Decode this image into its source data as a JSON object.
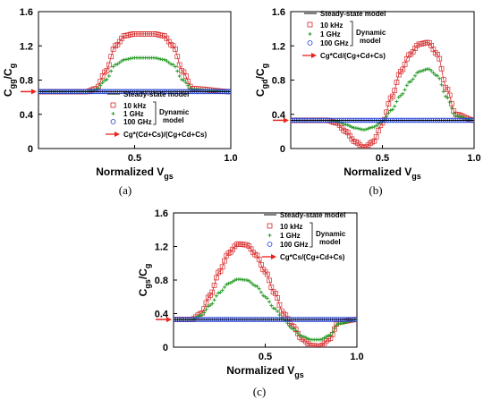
{
  "colors": {
    "ten_khz": "#d62728",
    "one_ghz": "#2a9d2a",
    "hundred_ghz": "#1f3fd6",
    "steady": "#000000",
    "arrow": "#e8231e"
  },
  "chart_data": [
    {
      "type": "line",
      "caption": "(a)",
      "ylabel_main": "C",
      "ylabel_sub1": "gg",
      "ylabel_mid": "/C",
      "ylabel_sub2": "g",
      "xlabel_main": "Normalized V",
      "xlabel_sub": "gs",
      "xlim": [
        0,
        1.0
      ],
      "ylim": [
        0,
        1.6
      ],
      "xticks": [
        "0.5",
        "1.0"
      ],
      "yticks": [
        "0",
        "0.4",
        "0.8",
        "1.2",
        "1.6"
      ],
      "legend": {
        "steady_label": "Steady-state model",
        "labels": [
          "10 kHz",
          "1 GHz",
          "100 GHz"
        ],
        "group_label_1": "Dynamic",
        "group_label_2": "model",
        "arrow_label": "Cg*(Cd+Cs)/(Cg+Cd+Cs)"
      },
      "series": [
        {
          "name": "10 kHz",
          "marker": "square",
          "x": [
            0,
            0.25,
            0.3,
            0.35,
            0.4,
            0.45,
            0.5,
            0.55,
            0.6,
            0.65,
            0.7,
            0.75,
            0.8,
            1.0
          ],
          "y": [
            0.665,
            0.665,
            0.7,
            0.9,
            1.2,
            1.32,
            1.34,
            1.34,
            1.34,
            1.32,
            1.2,
            0.9,
            0.7,
            0.665
          ]
        },
        {
          "name": "1 GHz",
          "marker": "plus",
          "x": [
            0,
            0.25,
            0.3,
            0.35,
            0.4,
            0.45,
            0.5,
            0.55,
            0.6,
            0.65,
            0.7,
            0.75,
            0.8,
            1.0
          ],
          "y": [
            0.665,
            0.665,
            0.69,
            0.8,
            0.98,
            1.04,
            1.06,
            1.06,
            1.06,
            1.04,
            0.98,
            0.8,
            0.69,
            0.665
          ]
        },
        {
          "name": "100 GHz",
          "marker": "circle",
          "x": [
            0,
            1.0
          ],
          "y": [
            0.665,
            0.665
          ]
        },
        {
          "name": "Steady-state model",
          "marker": "none",
          "x": [
            0,
            1.0
          ],
          "y": [
            0.665,
            0.665
          ]
        }
      ],
      "arrow_y": 0.665
    },
    {
      "type": "line",
      "caption": "(b)",
      "ylabel_main": "C",
      "ylabel_sub1": "gd",
      "ylabel_mid": "/C",
      "ylabel_sub2": "g",
      "xlabel_main": "Normalized V",
      "xlabel_sub": "gs",
      "xlim": [
        0,
        1.0
      ],
      "ylim": [
        0,
        1.6
      ],
      "xticks": [
        "0.5",
        "1.0"
      ],
      "yticks": [
        "0",
        "0.4",
        "0.8",
        "1.2",
        "1.6"
      ],
      "legend": {
        "steady_label": "Steady-state model",
        "labels": [
          "10 kHz",
          "1 GHz",
          "100 GHz"
        ],
        "group_label_1": "Dynamic",
        "group_label_2": "model",
        "arrow_label": "Cg*Cd/(Cg+Cd+Cs)"
      },
      "series": [
        {
          "name": "10 kHz",
          "marker": "square",
          "x": [
            0,
            0.2,
            0.25,
            0.3,
            0.35,
            0.4,
            0.45,
            0.5,
            0.55,
            0.6,
            0.65,
            0.7,
            0.75,
            0.8,
            0.85,
            0.9,
            1.0
          ],
          "y": [
            0.33,
            0.33,
            0.3,
            0.2,
            0.08,
            0.01,
            0.08,
            0.3,
            0.6,
            0.9,
            1.1,
            1.22,
            1.24,
            1.1,
            0.7,
            0.4,
            0.33
          ]
        },
        {
          "name": "1 GHz",
          "marker": "plus",
          "x": [
            0,
            0.2,
            0.25,
            0.3,
            0.35,
            0.4,
            0.45,
            0.5,
            0.55,
            0.6,
            0.65,
            0.7,
            0.75,
            0.8,
            0.85,
            0.9,
            1.0
          ],
          "y": [
            0.33,
            0.33,
            0.32,
            0.28,
            0.24,
            0.22,
            0.25,
            0.32,
            0.45,
            0.62,
            0.78,
            0.9,
            0.93,
            0.85,
            0.6,
            0.38,
            0.33
          ]
        },
        {
          "name": "100 GHz",
          "marker": "circle",
          "x": [
            0,
            1.0
          ],
          "y": [
            0.33,
            0.33
          ]
        },
        {
          "name": "Steady-state model",
          "marker": "none",
          "x": [
            0,
            1.0
          ],
          "y": [
            0.33,
            0.33
          ]
        }
      ],
      "arrow_y": 0.33
    },
    {
      "type": "line",
      "caption": "(c)",
      "ylabel_main": "C",
      "ylabel_sub1": "gs",
      "ylabel_mid": "/C",
      "ylabel_sub2": "g",
      "xlabel_main": "Normalized V",
      "xlabel_sub": "gs",
      "xlim": [
        0,
        1.0
      ],
      "ylim": [
        0,
        1.6
      ],
      "xticks": [
        "0.5",
        "1.0"
      ],
      "yticks": [
        "0",
        "0.4",
        "0.8",
        "1.2",
        "1.6"
      ],
      "legend": {
        "steady_label": "Steady-state model",
        "labels": [
          "10 kHz",
          "1 GHz",
          "100 GHz"
        ],
        "group_label_1": "Dynamic",
        "group_label_2": "model",
        "arrow_label": "Cg*Cs/(Cg+Cd+Cs)"
      },
      "series": [
        {
          "name": "10 kHz",
          "marker": "square",
          "x": [
            0,
            0.1,
            0.15,
            0.2,
            0.25,
            0.3,
            0.35,
            0.4,
            0.45,
            0.5,
            0.55,
            0.6,
            0.65,
            0.7,
            0.75,
            0.8,
            0.85,
            0.9,
            1.0
          ],
          "y": [
            0.33,
            0.33,
            0.4,
            0.62,
            0.9,
            1.12,
            1.23,
            1.22,
            1.1,
            0.9,
            0.65,
            0.4,
            0.25,
            0.1,
            0.02,
            0.01,
            0.1,
            0.3,
            0.33
          ]
        },
        {
          "name": "1 GHz",
          "marker": "plus",
          "x": [
            0,
            0.1,
            0.15,
            0.2,
            0.25,
            0.3,
            0.35,
            0.4,
            0.45,
            0.5,
            0.55,
            0.6,
            0.65,
            0.7,
            0.75,
            0.8,
            0.85,
            0.9,
            1.0
          ],
          "y": [
            0.33,
            0.33,
            0.38,
            0.5,
            0.65,
            0.76,
            0.81,
            0.8,
            0.73,
            0.6,
            0.46,
            0.33,
            0.22,
            0.13,
            0.09,
            0.09,
            0.14,
            0.28,
            0.33
          ]
        },
        {
          "name": "100 GHz",
          "marker": "circle",
          "x": [
            0,
            1.0
          ],
          "y": [
            0.33,
            0.33
          ]
        },
        {
          "name": "Steady-state model",
          "marker": "none",
          "x": [
            0,
            1.0
          ],
          "y": [
            0.33,
            0.33
          ]
        }
      ],
      "arrow_y": 0.33
    }
  ]
}
